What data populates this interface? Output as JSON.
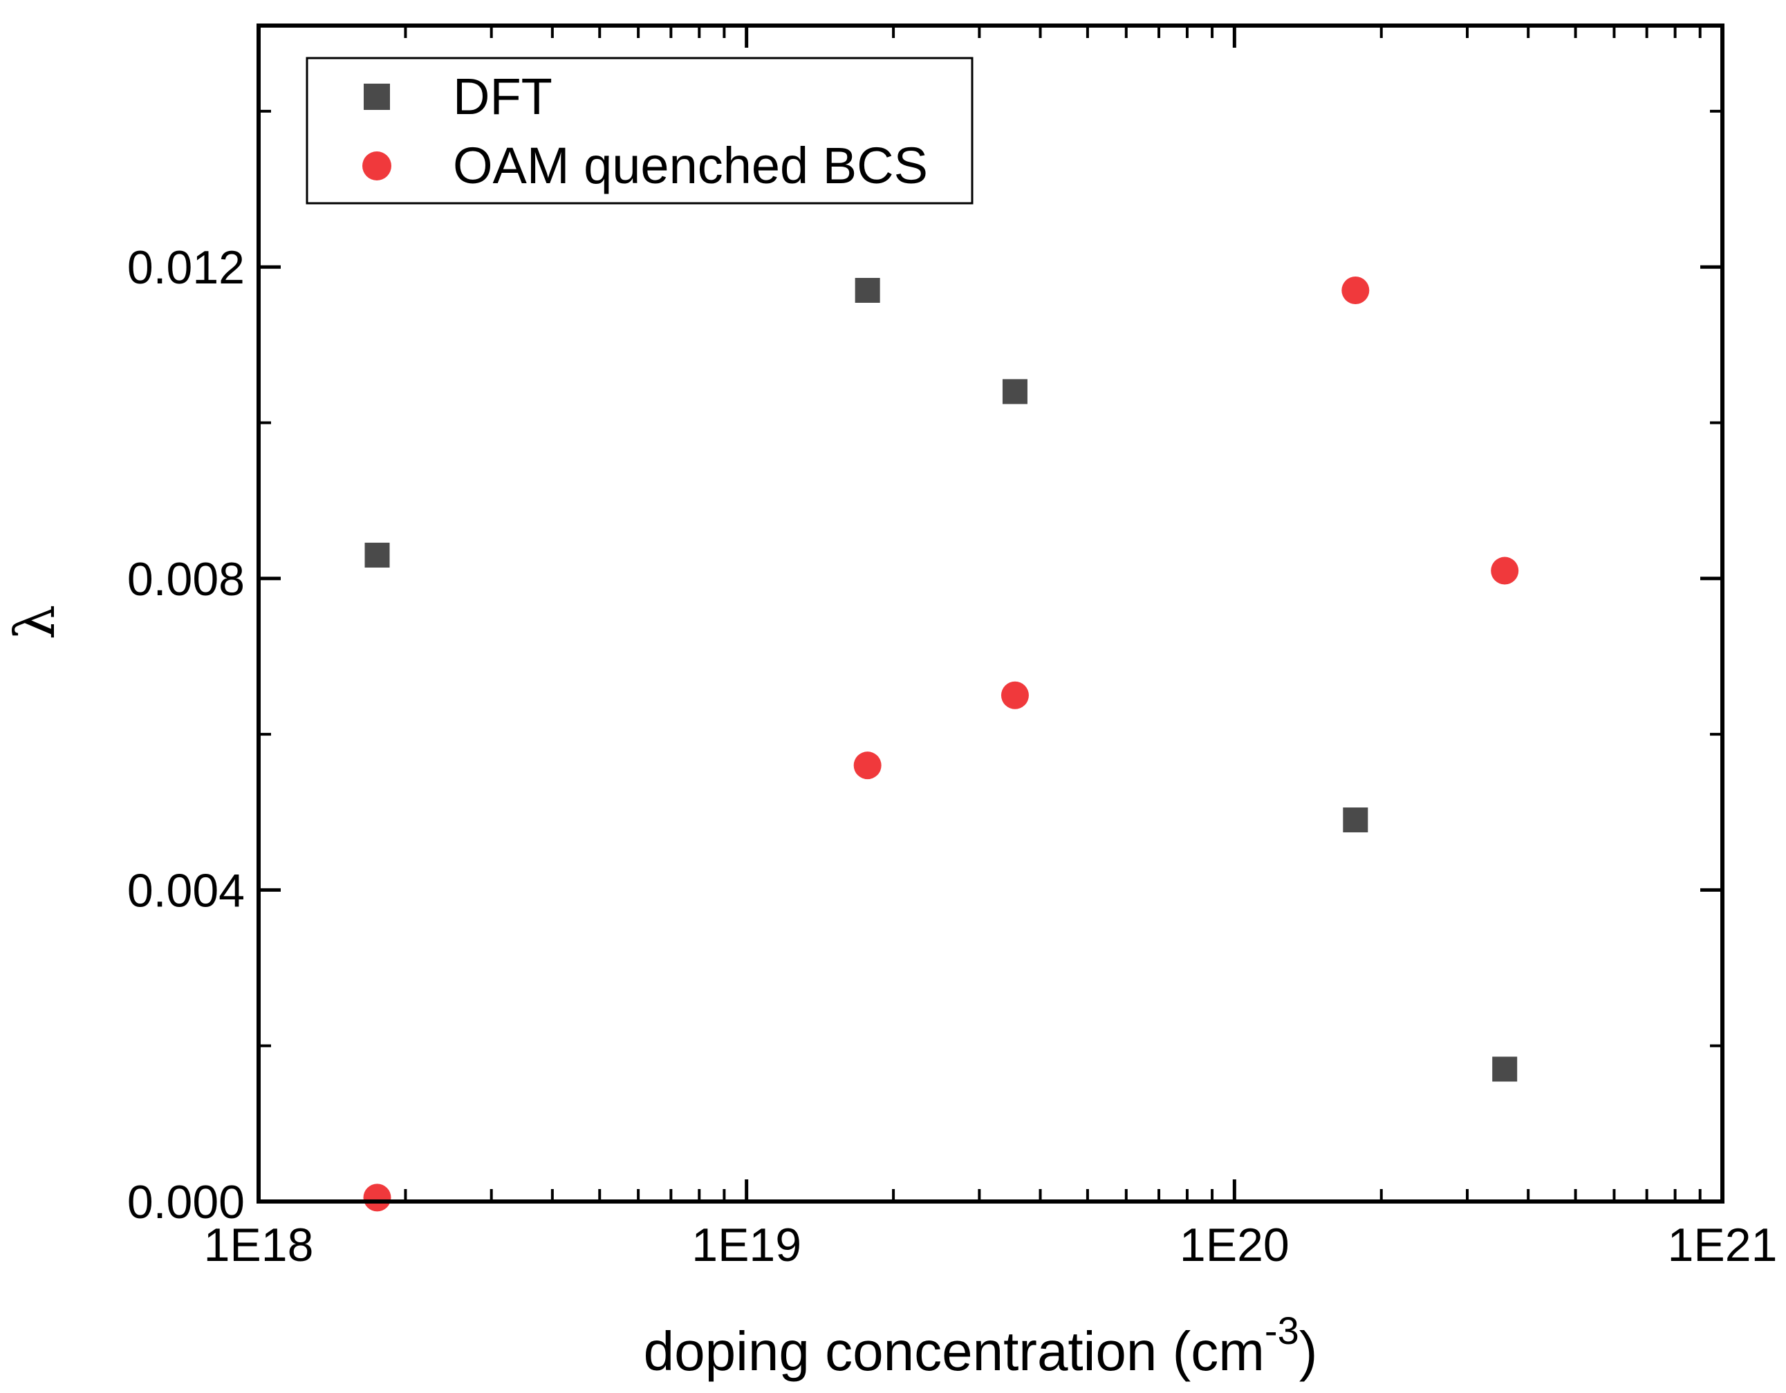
{
  "chart_data": {
    "type": "scatter",
    "title": "",
    "xlabel": "doping concentration (cm",
    "xlabel_superscript": "-3",
    "xlabel_close": ")",
    "ylabel": "λ",
    "xscale": "log",
    "xlim": [
      1e+18,
      1e+21
    ],
    "ylim": [
      0,
      0.0151
    ],
    "x_ticks": [
      {
        "value": 1e+18,
        "label": "1E18"
      },
      {
        "value": 1e+19,
        "label": "1E19"
      },
      {
        "value": 1e+20,
        "label": "1E20"
      },
      {
        "value": 1e+21,
        "label": "1E21"
      }
    ],
    "y_ticks": [
      {
        "value": 0.0,
        "label": "0.000"
      },
      {
        "value": 0.004,
        "label": "0.004"
      },
      {
        "value": 0.008,
        "label": "0.008"
      },
      {
        "value": 0.012,
        "label": "0.012"
      }
    ],
    "y_minor_ticks": [
      0.002,
      0.006,
      0.01,
      0.014
    ],
    "grid": false,
    "legend_position": "top-left",
    "series": [
      {
        "name": "DFT",
        "marker": "square",
        "color": "#4a4a4a",
        "x": [
          1.75e+18,
          1.77e+19,
          3.55e+19,
          1.77e+20,
          3.58e+20
        ],
        "y": [
          0.0083,
          0.0117,
          0.0104,
          0.0049,
          0.0017
        ]
      },
      {
        "name": "OAM quenched BCS",
        "marker": "circle",
        "color": "#f0393c",
        "x": [
          1.75e+18,
          1.77e+19,
          3.55e+19,
          1.77e+20,
          3.58e+20
        ],
        "y": [
          5e-05,
          0.0056,
          0.0065,
          0.0117,
          0.0081
        ]
      }
    ]
  }
}
